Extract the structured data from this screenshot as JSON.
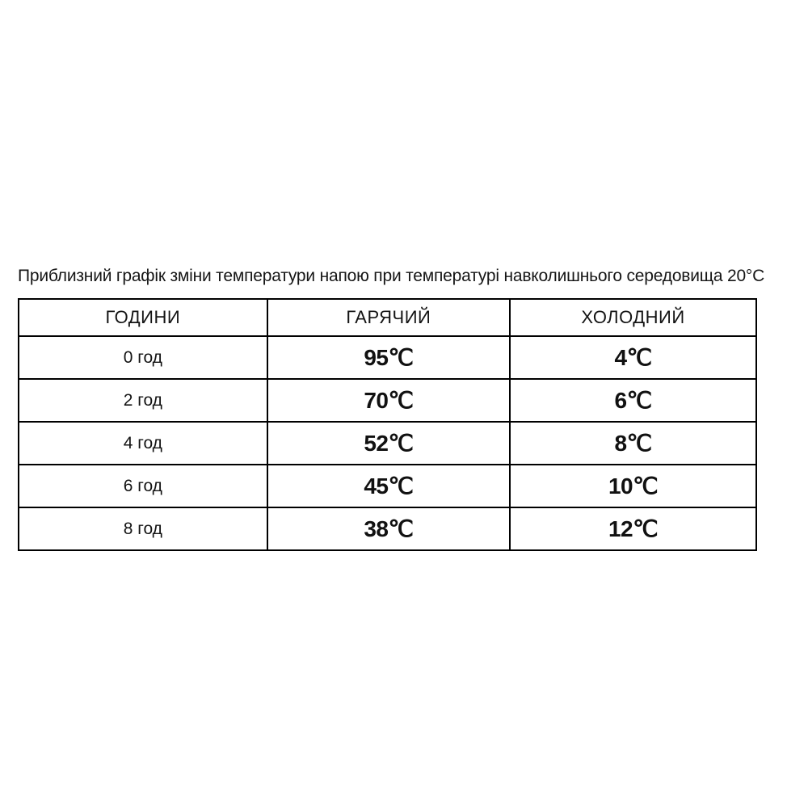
{
  "title": "Приблизний графік зміни температури напою при температурі навколишнього середовища 20°C",
  "table": {
    "headers": {
      "hours": "ГОДИНИ",
      "hot": "ГАРЯЧИЙ",
      "cold": "ХОЛОДНИЙ"
    },
    "rows": [
      {
        "hours": "0 год",
        "hot": "95℃",
        "cold": "4℃"
      },
      {
        "hours": "2 год",
        "hot": "70℃",
        "cold": "6℃"
      },
      {
        "hours": "4 год",
        "hot": "52℃",
        "cold": "8℃"
      },
      {
        "hours": "6 год",
        "hot": "45℃",
        "cold": "10℃"
      },
      {
        "hours": "8 год",
        "hot": "38℃",
        "cold": "12℃"
      }
    ]
  },
  "chart_data": {
    "type": "table",
    "title": "Приблизний графік зміни температури напою при температурі навколишнього середовища 20°C",
    "columns": [
      "ГОДИНИ",
      "ГАРЯЧИЙ",
      "ХОЛОДНИЙ"
    ],
    "categories": [
      "0 год",
      "2 год",
      "4 год",
      "6 год",
      "8 год"
    ],
    "series": [
      {
        "name": "ГАРЯЧИЙ",
        "values": [
          95,
          70,
          52,
          45,
          38
        ],
        "unit": "℃"
      },
      {
        "name": "ХОЛОДНИЙ",
        "values": [
          4,
          6,
          8,
          10,
          12
        ],
        "unit": "℃"
      }
    ],
    "ambient_temperature_c": 20,
    "layout": {
      "grid": "full-borders",
      "text_color": "#1a1a1a",
      "border_color": "#000000",
      "background": "#ffffff"
    }
  }
}
